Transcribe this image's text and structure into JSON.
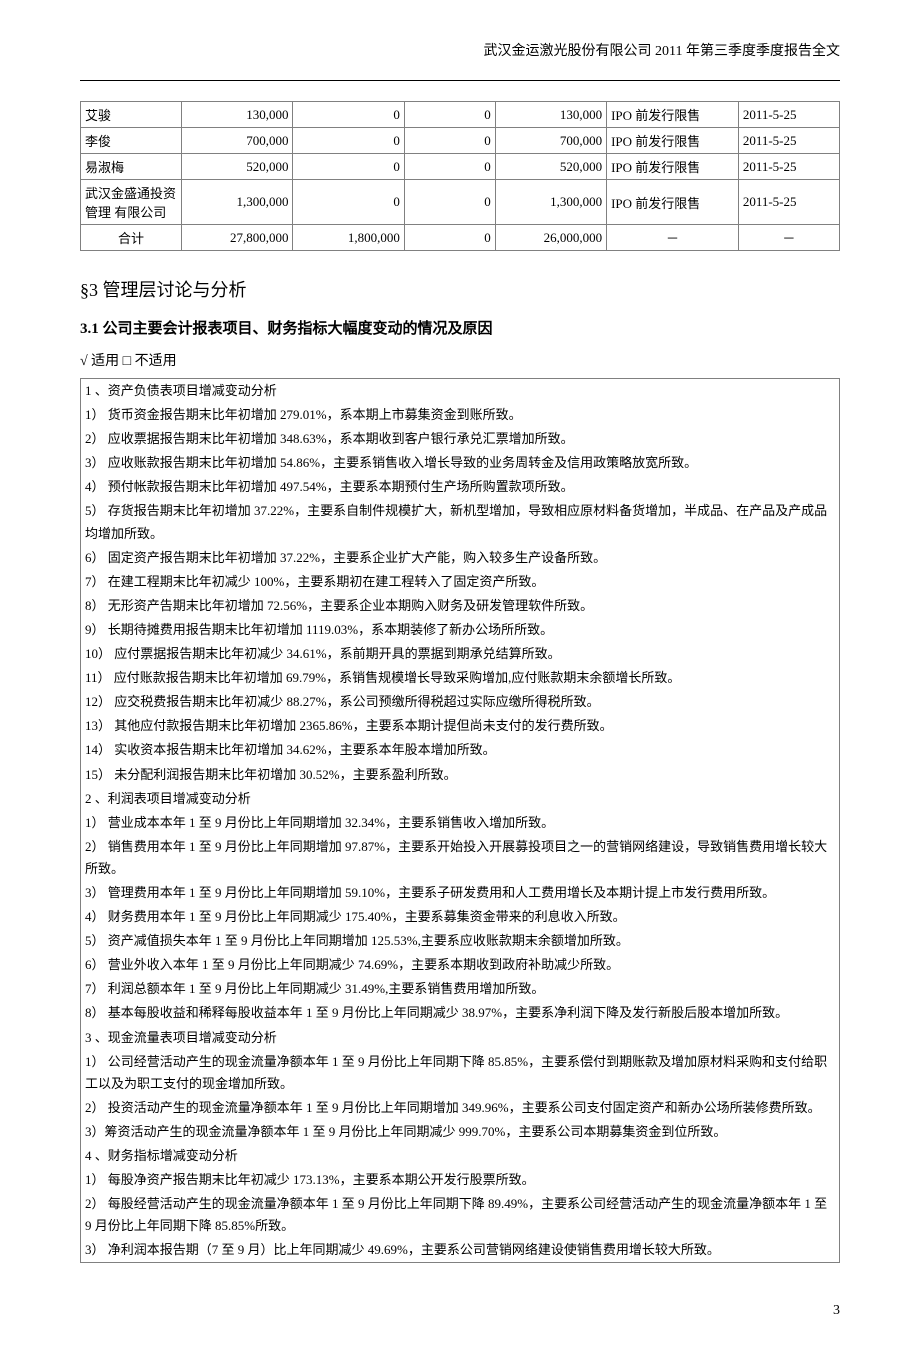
{
  "header": "武汉金运激光股份有限公司 2011 年第三季度季度报告全文",
  "shareholder_table": {
    "rows": [
      {
        "name": "艾骏",
        "c1": "130,000",
        "c2": "0",
        "c3": "0",
        "c4": "130,000",
        "type": "IPO 前发行限售",
        "date": "2011-5-25"
      },
      {
        "name": "李俊",
        "c1": "700,000",
        "c2": "0",
        "c3": "0",
        "c4": "700,000",
        "type": "IPO 前发行限售",
        "date": "2011-5-25"
      },
      {
        "name": "易淑梅",
        "c1": "520,000",
        "c2": "0",
        "c3": "0",
        "c4": "520,000",
        "type": "IPO 前发行限售",
        "date": "2011-5-25"
      },
      {
        "name": "武汉金盛通投资管理 有限公司",
        "c1": "1,300,000",
        "c2": "0",
        "c3": "0",
        "c4": "1,300,000",
        "type": "IPO 前发行限售",
        "date": "2011-5-25"
      },
      {
        "name": "合计",
        "c1": "27,800,000",
        "c2": "1,800,000",
        "c3": "0",
        "c4": "26,000,000",
        "type": "－",
        "date": "－"
      }
    ]
  },
  "section3": {
    "title": "§3 管理层讨论与分析",
    "sub31_title": "3.1 公司主要会计报表项目、财务指标大幅度变动的情况及原因",
    "apply_text": "√ 适用 □ 不适用",
    "analysis_lines": [
      "1 、资产负债表项目增减变动分析",
      "1）   货币资金报告期末比年初增加 279.01%，系本期上市募集资金到账所致。",
      "2）   应收票据报告期末比年初增加 348.63%，系本期收到客户银行承兑汇票增加所致。",
      "3）   应收账款报告期末比年初增加 54.86%，主要系销售收入增长导致的业务周转金及信用政策略放宽所致。",
      "4）   预付帐款报告期末比年初增加 497.54%，主要系本期预付生产场所购置款项所致。",
      "5）   存货报告期末比年初增加 37.22%，主要系自制件规模扩大，新机型增加，导致相应原材料备货增加，半成品、在产品及产成品均增加所致。",
      "6）   固定资产报告期末比年初增加 37.22%，主要系企业扩大产能，购入较多生产设备所致。",
      "7）   在建工程期末比年初减少 100%，主要系期初在建工程转入了固定资产所致。",
      "8）   无形资产告期末比年初增加 72.56%，主要系企业本期购入财务及研发管理软件所致。",
      "9）   长期待摊费用报告期末比年初增加 1119.03%，系本期装修了新办公场所所致。",
      "10）   应付票据报告期末比年初减少 34.61%，系前期开具的票据到期承兑结算所致。",
      "11）   应付账款报告期末比年初增加 69.79%，系销售规模增长导致采购增加,应付账款期末余额增长所致。",
      "12）   应交税费报告期末比年初减少 88.27%，系公司预缴所得税超过实际应缴所得税所致。",
      "13）   其他应付款报告期末比年初增加 2365.86%，主要系本期计提但尚未支付的发行费所致。",
      "14）   实收资本报告期末比年初增加 34.62%，主要系本年股本增加所致。",
      "15）   未分配利润报告期末比年初增加 30.52%，主要系盈利所致。",
      "2 、利润表项目增减变动分析",
      "1）   营业成本本年 1 至 9 月份比上年同期增加 32.34%，主要系销售收入增加所致。",
      "2）   销售费用本年 1  至 9 月份比上年同期增加 97.87%，主要系开始投入开展募投项目之一的营销网络建设，导致销售费用增长较大所致。",
      "3）   管理费用本年 1  至 9 月份比上年同期增加 59.10%，主要系子研发费用和人工费用增长及本期计提上市发行费用所致。",
      "4）   财务费用本年 1  至 9 月份比上年同期减少 175.40%，主要系募集资金带来的利息收入所致。",
      "5）   资产减值损失本年 1  至 9 月份比上年同期增加 125.53%,主要系应收账款期末余额增加所致。",
      "6）   营业外收入本年 1  至 9 月份比上年同期减少 74.69%，主要系本期收到政府补助减少所致。",
      "7）   利润总额本年 1  至 9 月份比上年同期减少 31.49%,主要系销售费用增加所致。",
      "8）   基本每股收益和稀释每股收益本年 1 至 9 月份比上年同期减少 38.97%，主要系净利润下降及发行新股后股本增加所致。",
      "3 、现金流量表项目增减变动分析",
      "1）   公司经营活动产生的现金流量净额本年 1 至 9 月份比上年同期下降 85.85%，主要系偿付到期账款及增加原材料采购和支付给职工以及为职工支付的现金增加所致。",
      "2）   投资活动产生的现金流量净额本年 1 至 9 月份比上年同期增加 349.96%，主要系公司支付固定资产和新办公场所装修费所致。",
      "3）筹资活动产生的现金流量净额本年 1 至 9 月份比上年同期减少 999.70%，主要系公司本期募集资金到位所致。",
      "4 、财务指标增减变动分析",
      "1）   每股净资产报告期末比年初减少 173.13%，主要系本期公开发行股票所致。",
      "2）   每股经营活动产生的现金流量净额本年 1 至 9 月份比上年同期下降 89.49%，主要系公司经营活动产生的现金流量净额本年 1 至 9 月份比上年同期下降 85.85%所致。",
      "3）   净利润本报告期（7 至 9 月）比上年同期减少 49.69%，主要系公司营销网络建设使销售费用增长较大所致。"
    ]
  },
  "page_number": "3"
}
